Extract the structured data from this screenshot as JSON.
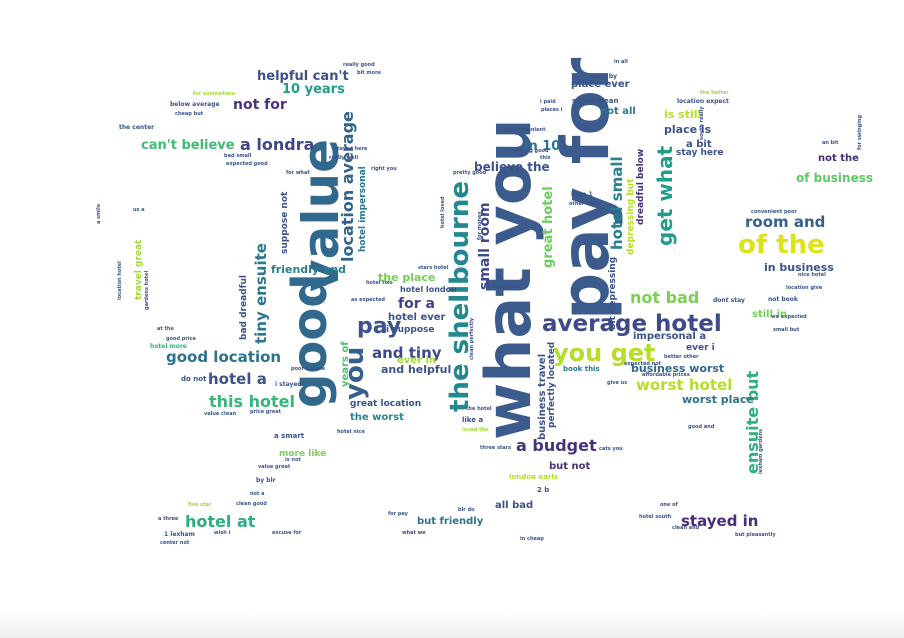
{
  "cloud": {
    "words": [
      {
        "text": "pay for",
        "color": "#3a5b8c"
      },
      {
        "text": "what you",
        "color": "#3a5b8c"
      },
      {
        "text": "good",
        "color": "#31688e"
      },
      {
        "text": "value",
        "color": "#31688e"
      },
      {
        "text": "the shellbourne",
        "color": "#23898e"
      },
      {
        "text": "average hotel",
        "color": "#3e4a89"
      },
      {
        "text": "of the",
        "color": "#dde318"
      },
      {
        "text": "you get",
        "color": "#b5de2b"
      },
      {
        "text": "get what",
        "color": "#1f9e89"
      },
      {
        "text": "location average",
        "color": "#33638d"
      },
      {
        "text": "hotel small",
        "color": "#26828e"
      },
      {
        "text": "room and",
        "color": "#35608d"
      },
      {
        "text": "pay",
        "color": "#3b528b"
      },
      {
        "text": "you",
        "color": "#355f8d"
      },
      {
        "text": "worst hotel",
        "color": "#b5de2b"
      },
      {
        "text": "good location",
        "color": "#2c728e"
      },
      {
        "text": "a budget",
        "color": "#46337e"
      },
      {
        "text": "hotel at",
        "color": "#2ab07f"
      },
      {
        "text": "stayed in",
        "color": "#472d7b"
      },
      {
        "text": "this hotel",
        "color": "#35b779"
      },
      {
        "text": "not bad",
        "color": "#7ad151"
      },
      {
        "text": "ensuite but",
        "color": "#2db27d"
      },
      {
        "text": "and tiny",
        "color": "#3e4989"
      },
      {
        "text": "hotel a",
        "color": "#3b528b"
      },
      {
        "text": "tiny ensuite",
        "color": "#2a788e"
      },
      {
        "text": "a londra",
        "color": "#404688"
      },
      {
        "text": "can't believe",
        "color": "#3fbc73"
      },
      {
        "text": "not for",
        "color": "#46327e"
      },
      {
        "text": "helpful can't",
        "color": "#3b528b"
      },
      {
        "text": "10 years",
        "color": "#1f9e89"
      },
      {
        "text": "for a",
        "color": "#414487"
      },
      {
        "text": "small room",
        "color": "#3e4989"
      },
      {
        "text": "great hotel",
        "color": "#6ccd5a"
      },
      {
        "text": "in 10",
        "color": "#2d708e"
      },
      {
        "text": "believe the",
        "color": "#3b528b"
      },
      {
        "text": "of business",
        "color": "#5ec962"
      },
      {
        "text": "in business",
        "color": "#3b528b"
      },
      {
        "text": "is still",
        "color": "#b5de2b"
      },
      {
        "text": "place is",
        "color": "#3b528b"
      },
      {
        "text": "business worst",
        "color": "#31688e"
      },
      {
        "text": "worst place",
        "color": "#2c728e"
      },
      {
        "text": "friendly and",
        "color": "#287c8e"
      },
      {
        "text": "the place",
        "color": "#73d056"
      },
      {
        "text": "hotel ever",
        "color": "#3b528b"
      },
      {
        "text": "and helpful",
        "color": "#3b528b"
      },
      {
        "text": "ever in",
        "color": "#a0da39"
      },
      {
        "text": "great location",
        "color": "#3b528b"
      },
      {
        "text": "the worst",
        "color": "#23898e"
      },
      {
        "text": "place ever",
        "color": "#3b528b"
      },
      {
        "text": "not all",
        "color": "#2a788e"
      },
      {
        "text": "a bit",
        "color": "#3b528b"
      },
      {
        "text": "stay here",
        "color": "#3b528b"
      },
      {
        "text": "not the",
        "color": "#472d7b"
      },
      {
        "text": "business travel",
        "color": "#3b528b"
      },
      {
        "text": "but not",
        "color": "#46337e"
      },
      {
        "text": "but friendly",
        "color": "#2c728e"
      },
      {
        "text": "still in",
        "color": "#73d056"
      },
      {
        "text": "impersonal a",
        "color": "#3b528b"
      },
      {
        "text": "more like",
        "color": "#7ad151"
      },
      {
        "text": "travel great",
        "color": "#a0da39"
      },
      {
        "text": "suppose not",
        "color": "#3b528b"
      },
      {
        "text": "hotel impersonal",
        "color": "#2a788e"
      },
      {
        "text": "depressing but",
        "color": "#b5de2b"
      },
      {
        "text": "dreadful below",
        "color": "#472d7b"
      },
      {
        "text": "years of",
        "color": "#4ac16d"
      },
      {
        "text": "bit depressing",
        "color": "#3b528b"
      },
      {
        "text": "ever i",
        "color": "#3b528b"
      },
      {
        "text": "perfectly located",
        "color": "#3b528b"
      },
      {
        "text": "hotel london",
        "color": "#3b528b"
      },
      {
        "text": "i suppose",
        "color": "#3b528b"
      },
      {
        "text": "all bad",
        "color": "#3b528b"
      },
      {
        "text": "bad dreadful",
        "color": "#3b528b"
      },
      {
        "text": "london earls",
        "color": "#b5de2b"
      },
      {
        "text": "a smart",
        "color": "#3b528b"
      },
      {
        "text": "book this",
        "color": "#2a788e"
      },
      {
        "text": "location expect",
        "color": "#3b528b"
      },
      {
        "text": "smart clean",
        "color": "#3b528b"
      },
      {
        "text": "court by",
        "color": "#3b528b"
      },
      {
        "text": "dont stay",
        "color": "#3b528b"
      },
      {
        "text": "not book",
        "color": "#3b528b"
      },
      {
        "text": "below average",
        "color": "#3b528b"
      },
      {
        "text": "cheap but",
        "color": "#3b528b"
      },
      {
        "text": "the center",
        "color": "#3b528b"
      },
      {
        "text": "really good",
        "color": "#3b528b"
      },
      {
        "text": "bit more",
        "color": "#3b528b"
      },
      {
        "text": "2 b",
        "color": "#3b528b"
      },
      {
        "text": "a three",
        "color": "#3b528b"
      },
      {
        "text": "1 lexham",
        "color": "#3b528b"
      },
      {
        "text": "by blr",
        "color": "#3b528b"
      },
      {
        "text": "like a",
        "color": "#3b528b"
      },
      {
        "text": "hotel more",
        "color": "#35b779"
      },
      {
        "text": "lexham gardens",
        "color": "#3b528b"
      },
      {
        "text": "gardens hotel",
        "color": "#3b528b"
      },
      {
        "text": "location hotel",
        "color": "#3b528b"
      },
      {
        "text": "here 1",
        "color": "#3b528b"
      },
      {
        "text": "other than",
        "color": "#3b528b"
      },
      {
        "text": "b dont",
        "color": "#3b528b"
      },
      {
        "text": "three stars",
        "color": "#3b528b"
      },
      {
        "text": "earls court",
        "color": "#3b528b"
      },
      {
        "text": "hotel nice",
        "color": "#3b528b"
      },
      {
        "text": "the better",
        "color": "#a0da39"
      },
      {
        "text": "good and",
        "color": "#3b528b"
      },
      {
        "text": "one of",
        "color": "#3b528b"
      },
      {
        "text": "hotel south",
        "color": "#3b528b"
      },
      {
        "text": "convenient poor",
        "color": "#3b528b"
      },
      {
        "text": "nice hotel",
        "color": "#3b528b"
      },
      {
        "text": "location give",
        "color": "#3b528b"
      },
      {
        "text": "an bit",
        "color": "#3b528b"
      },
      {
        "text": "for what",
        "color": "#3b528b"
      },
      {
        "text": "do not",
        "color": "#3b528b"
      },
      {
        "text": "i stayed",
        "color": "#3b528b"
      },
      {
        "text": "value clean",
        "color": "#3b528b"
      },
      {
        "text": "price great",
        "color": "#3b528b"
      },
      {
        "text": "value great",
        "color": "#3b528b"
      },
      {
        "text": "is not",
        "color": "#3b528b"
      },
      {
        "text": "blr do",
        "color": "#3b528b"
      },
      {
        "text": "for pay",
        "color": "#3b528b"
      },
      {
        "text": "what we",
        "color": "#3b528b"
      },
      {
        "text": "in cheap",
        "color": "#3b528b"
      },
      {
        "text": "center not",
        "color": "#3b528b"
      },
      {
        "text": "wish i",
        "color": "#3b528b"
      },
      {
        "text": "excuse for",
        "color": "#3b528b"
      },
      {
        "text": "clean good",
        "color": "#3b528b"
      },
      {
        "text": "not a",
        "color": "#3b528b"
      },
      {
        "text": "better other",
        "color": "#3b528b"
      },
      {
        "text": "affordable prices",
        "color": "#3b528b"
      },
      {
        "text": "give us",
        "color": "#3b528b"
      },
      {
        "text": "expected not",
        "color": "#3b528b"
      },
      {
        "text": "nothing good",
        "color": "#3b528b"
      },
      {
        "text": "pretty good",
        "color": "#3b528b"
      },
      {
        "text": "and convenient",
        "color": "#3b528b"
      },
      {
        "text": "i paid",
        "color": "#3b528b"
      },
      {
        "text": "places i",
        "color": "#3b528b"
      },
      {
        "text": "poor excuse",
        "color": "#3b528b"
      },
      {
        "text": "right you",
        "color": "#3b528b"
      },
      {
        "text": "for somewhere",
        "color": "#a0da39"
      },
      {
        "text": "south really",
        "color": "#3b528b"
      },
      {
        "text": "for swinging",
        "color": "#3b528b"
      },
      {
        "text": "bad small",
        "color": "#3b528b"
      },
      {
        "text": "expected good",
        "color": "#3b528b"
      },
      {
        "text": "a smile",
        "color": "#3b528b"
      },
      {
        "text": "we expected",
        "color": "#3b528b"
      },
      {
        "text": "small but",
        "color": "#3b528b"
      },
      {
        "text": "at the",
        "color": "#3b528b"
      },
      {
        "text": "good price",
        "color": "#3b528b"
      },
      {
        "text": "stars hotel",
        "color": "#3b528b"
      },
      {
        "text": "hotel two",
        "color": "#3b528b"
      },
      {
        "text": "the hotel",
        "color": "#3b528b"
      },
      {
        "text": "as expected",
        "color": "#3b528b"
      },
      {
        "text": "hotel loved",
        "color": "#3b528b"
      },
      {
        "text": "loved the",
        "color": "#a0da39"
      },
      {
        "text": "clean perfectly",
        "color": "#3b528b"
      },
      {
        "text": "for money",
        "color": "#3b528b"
      },
      {
        "text": "but pleasantly",
        "color": "#3b528b"
      },
      {
        "text": "clean and",
        "color": "#3b528b"
      },
      {
        "text": "cats you",
        "color": "#3b528b"
      },
      {
        "text": "stayed here",
        "color": "#3b528b"
      },
      {
        "text": "five star",
        "color": "#a0da39"
      },
      {
        "text": "really well",
        "color": "#3b528b"
      },
      {
        "text": "us a",
        "color": "#3b528b"
      },
      {
        "text": "this",
        "color": "#3b528b"
      },
      {
        "text": "in all",
        "color": "#3b528b"
      }
    ]
  }
}
